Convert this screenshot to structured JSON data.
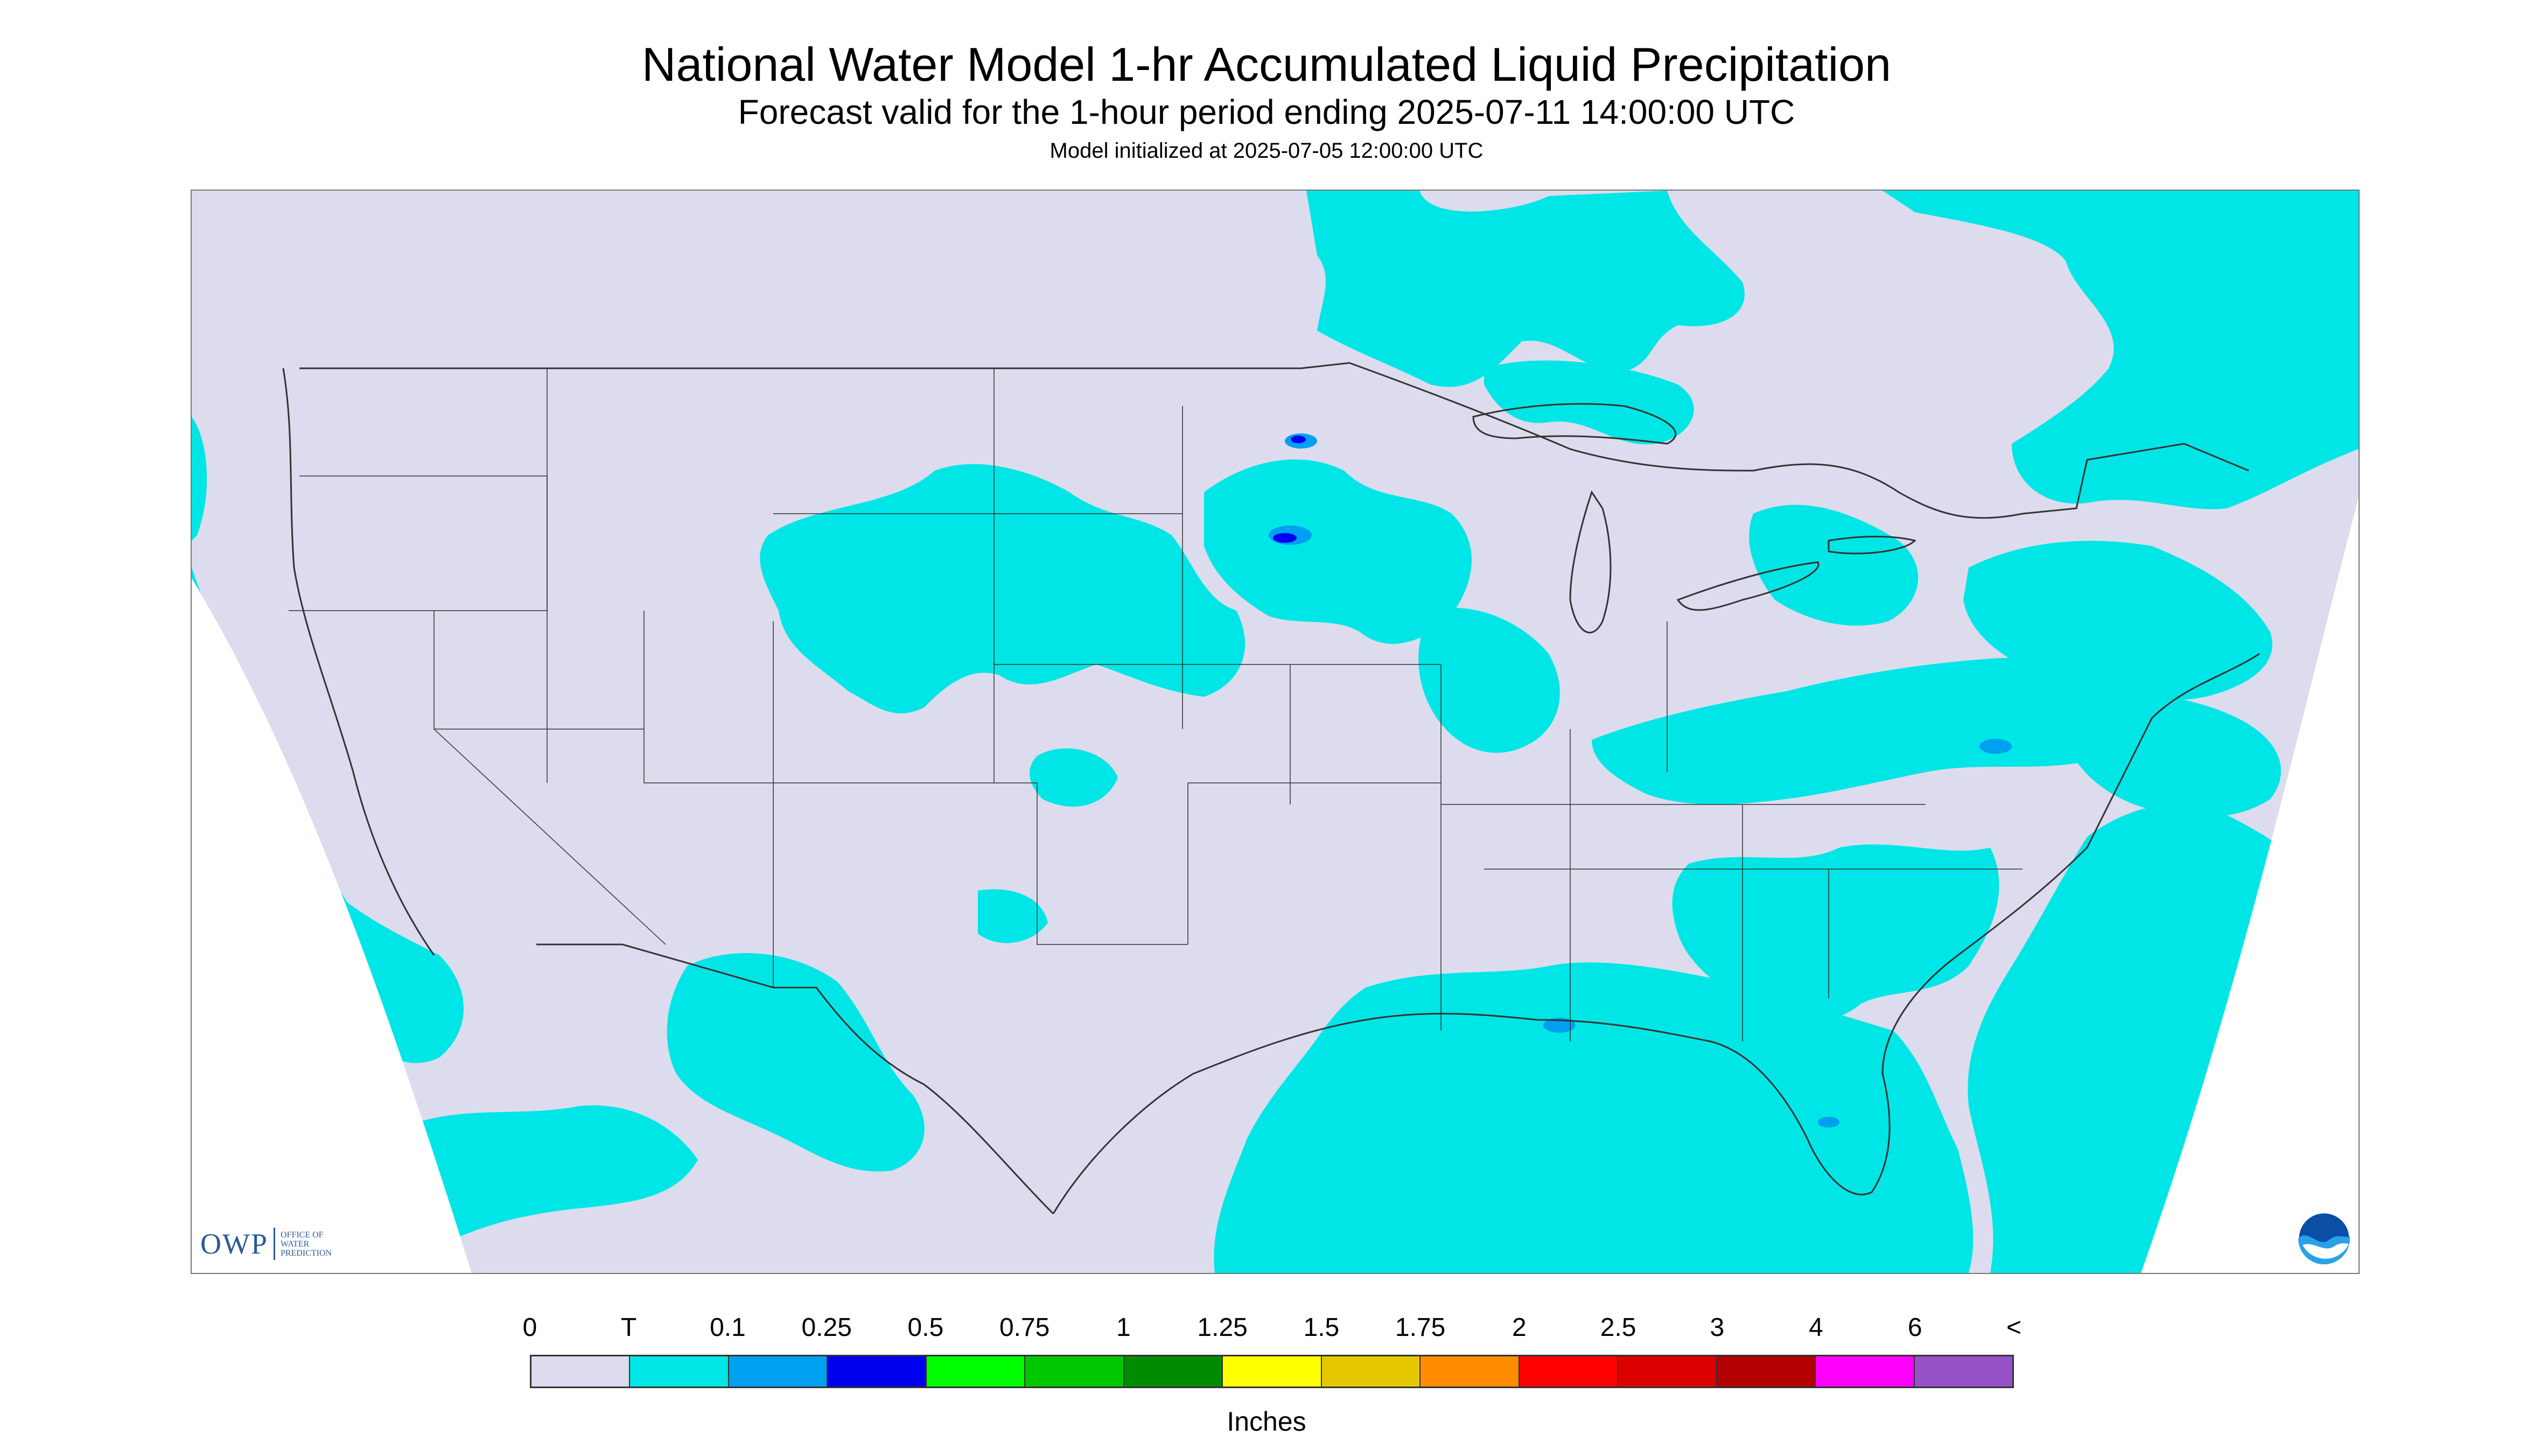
{
  "title": "National Water Model 1-hr Accumulated Liquid Precipitation",
  "subtitle": "Forecast valid for the 1-hour period ending 2025-07-11 14:00:00 UTC",
  "init_line": "Model initialized at 2025-07-05 12:00:00 UTC",
  "logos": {
    "owp_mark": "OWP",
    "owp_text": [
      "OFFICE OF",
      "WATER",
      "PREDICTION"
    ],
    "noaa": "NOAA"
  },
  "map": {
    "background_color": "#dcdcee",
    "precip_color_light": "#00e6e6",
    "precip_color_medium": "#00a0f0",
    "precip_color_heavy": "#0000f0",
    "outline_color": "#333333",
    "off_domain_color": "#ffffff"
  },
  "legend": {
    "labels": [
      "0",
      "T",
      "0.1",
      "0.25",
      "0.5",
      "0.75",
      "1",
      "1.25",
      "1.5",
      "1.75",
      "2",
      "2.5",
      "3",
      "4",
      "6",
      "<"
    ],
    "colors": [
      "#dcdcee",
      "#00e6e6",
      "#00a0f0",
      "#0000f0",
      "#00ff00",
      "#00c800",
      "#008c00",
      "#ffff00",
      "#e6c800",
      "#ff8c00",
      "#ff0000",
      "#dc0000",
      "#b40000",
      "#ff00ff",
      "#9650c8"
    ],
    "units": "Inches"
  }
}
